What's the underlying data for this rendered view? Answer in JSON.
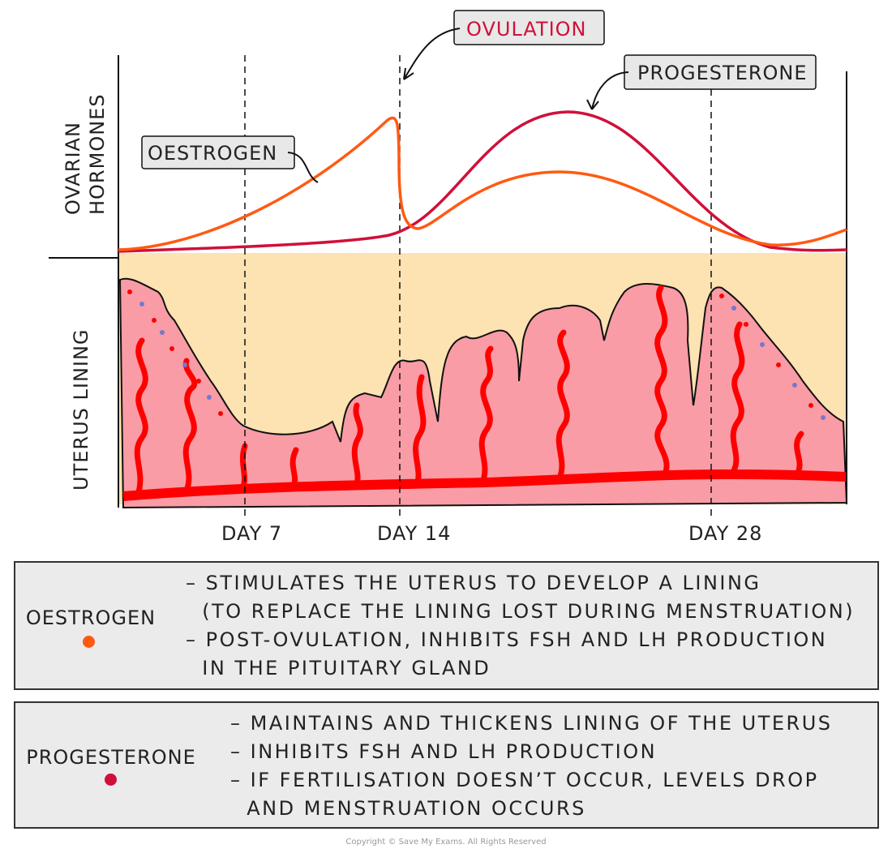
{
  "axis_labels": {
    "top_1": "OVARIAN",
    "top_2": "HORMONES",
    "bottom": "UTERUS LINING"
  },
  "days": [
    "DAY 7",
    "DAY 14",
    "DAY 28"
  ],
  "callouts": {
    "oestrogen": "OESTROGEN",
    "ovulation": "OVULATION",
    "progesterone": "PROGESTERONE"
  },
  "colors": {
    "oestrogen": "#ff5a12",
    "progesterone": "#d0103a",
    "ovulation_text": "#d0103a",
    "lining": "#f99ca6",
    "background": "#fde2b2",
    "vessel": "#ff0000"
  },
  "info": [
    {
      "name": "OESTROGEN",
      "color": "#ff5a12",
      "lines": [
        "– STIMULATES THE UTERUS TO DEVELOP A LINING",
        "  (TO REPLACE THE LINING LOST DURING MENSTRUATION)",
        "– POST-OVULATION, INHIBITS FSH AND LH PRODUCTION",
        "  IN THE PITUITARY GLAND"
      ]
    },
    {
      "name": "PROGESTERONE",
      "color": "#d0103a",
      "lines": [
        "– MAINTAINS AND THICKENS LINING OF THE UTERUS",
        "– INHIBITS FSH AND LH PRODUCTION",
        "– IF FERTILISATION DOESN’T OCCUR, LEVELS DROP",
        "  AND MENSTRUATION OCCURS"
      ]
    }
  ],
  "copyright": "Copyright © Save My Exams. All Rights Reserved"
}
